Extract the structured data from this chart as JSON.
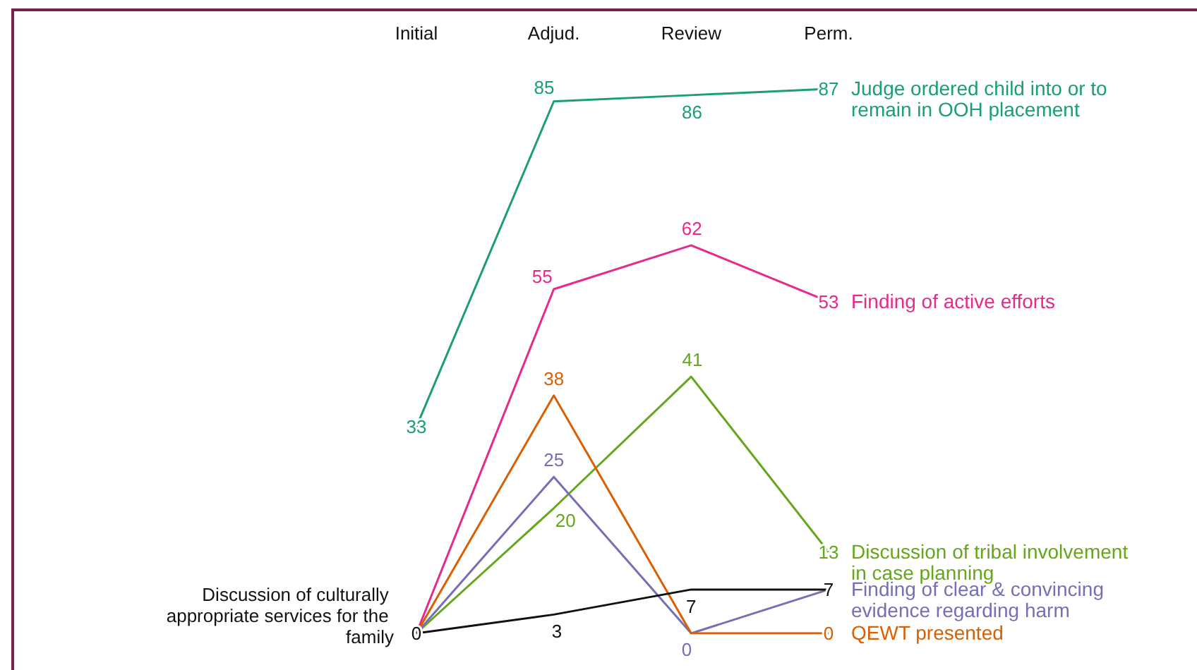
{
  "chart_data": {
    "type": "line",
    "categories": [
      "Initial",
      "Adjud.",
      "Review",
      "Perm."
    ],
    "legend": false,
    "grid": false,
    "annotations": [
      {
        "text": "Discussion of culturally appropriate services for the family",
        "x": "Initial",
        "y": 0
      }
    ],
    "series": [
      {
        "name": "Judge ordered child into or to remain in OOH placement",
        "color": "#1b9e77",
        "values": [
          33,
          85,
          86,
          87
        ],
        "value_labels": [
          "33",
          "85",
          "86",
          "87"
        ]
      },
      {
        "name": "Finding of active efforts",
        "color": "#e7298a",
        "values": [
          0,
          55,
          62,
          53
        ],
        "value_labels": [
          null,
          "55",
          "62",
          "53"
        ]
      },
      {
        "name": "Discussion of tribal involvement in case planning",
        "color": "#66a61e",
        "values": [
          0,
          20,
          41,
          13
        ],
        "value_labels": [
          null,
          "20",
          "41",
          "13"
        ]
      },
      {
        "name": "Finding of clear & convincing evidence regarding harm",
        "color": "#7570b3",
        "values": [
          0,
          25,
          0,
          7
        ],
        "value_labels": [
          null,
          "25",
          "0",
          null
        ]
      },
      {
        "name": "QEWT presented",
        "color": "#d95f02",
        "values": [
          0,
          38,
          0,
          0
        ],
        "value_labels": [
          null,
          "38",
          null,
          "0"
        ]
      },
      {
        "color": "#111111",
        "values": [
          0,
          3,
          7,
          7
        ],
        "value_labels": [
          "0",
          "3",
          "7",
          "7"
        ]
      }
    ]
  }
}
